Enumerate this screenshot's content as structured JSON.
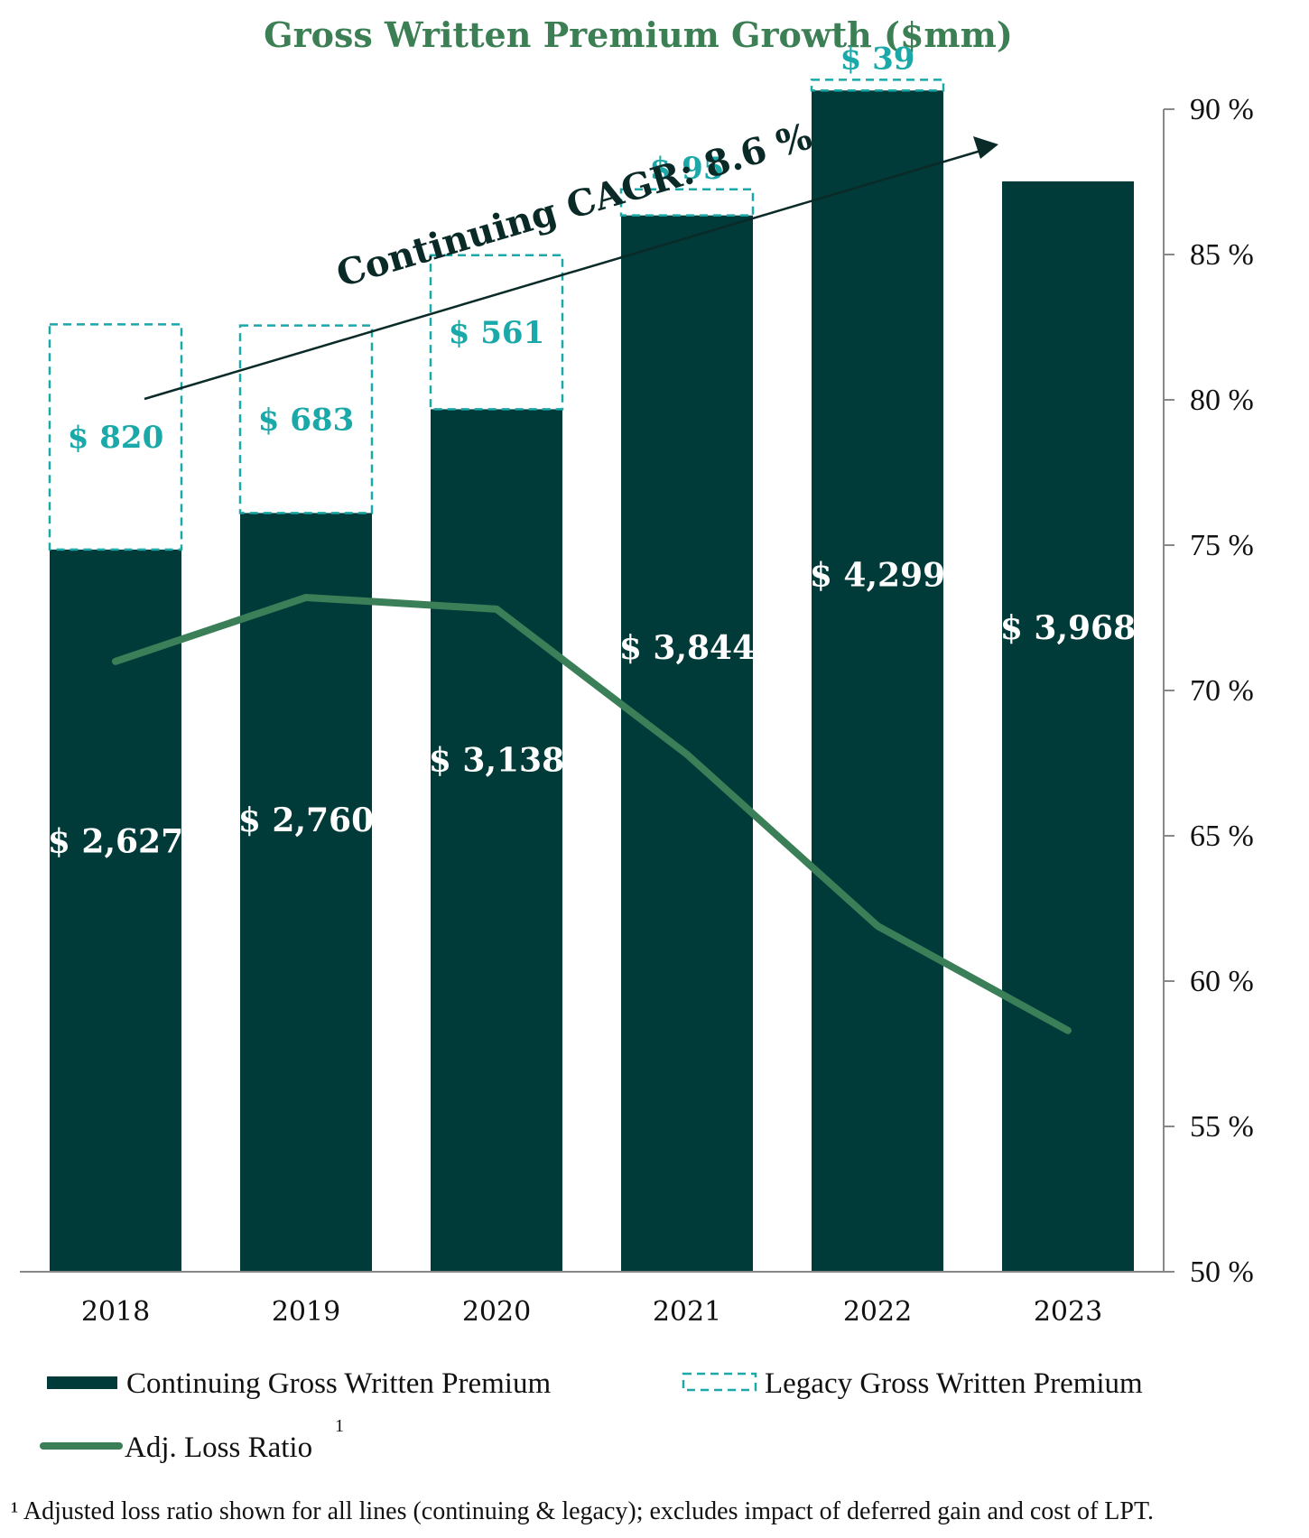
{
  "chart_data": {
    "type": "bar",
    "title": "Gross Written Premium Growth ($mm)",
    "categories": [
      "2018",
      "2019",
      "2020",
      "2021",
      "2022",
      "2023"
    ],
    "series": [
      {
        "name": "Continuing Gross Written Premium",
        "type": "bar",
        "stack": "gwp",
        "values": [
          2627,
          2760,
          3138,
          3844,
          4299,
          3968
        ],
        "labels": [
          "$ 2,627",
          "$ 2,760",
          "$ 3,138",
          "$ 3,844",
          "$ 4,299",
          "$ 3,968"
        ],
        "color": "#003b3a"
      },
      {
        "name": "Legacy Gross Written Premium",
        "type": "bar",
        "stack": "gwp",
        "style": "dashed-outline",
        "values": [
          820,
          683,
          561,
          95,
          39,
          null
        ],
        "labels": [
          "$ 820",
          "$ 683",
          "$ 561",
          "$ 95",
          "$ 39",
          ""
        ],
        "color": "#1aa8a8"
      },
      {
        "name": "Adj. Loss Ratio",
        "type": "line",
        "axis": "right",
        "values": [
          71.0,
          73.2,
          72.8,
          67.8,
          61.9,
          58.3
        ],
        "color": "#3a7f57"
      }
    ],
    "y2_ticks": [
      "90 %",
      "85 %",
      "80 %",
      "75 %",
      "70 %",
      "65 %",
      "60 %",
      "55 %",
      "50 %"
    ],
    "y2lim": [
      50,
      90
    ],
    "annotation": "Continuing CAGR: 8.6 %",
    "legend": {
      "items": [
        "Continuing Gross Written Premium",
        "Legacy Gross Written Premium",
        "Adj. Loss Ratio"
      ],
      "superscript": "1"
    },
    "footnote": "¹ Adjusted loss ratio shown for all lines (continuing & legacy); excludes impact of deferred gain and cost of LPT.",
    "grid": false,
    "legend_position": "bottom"
  }
}
